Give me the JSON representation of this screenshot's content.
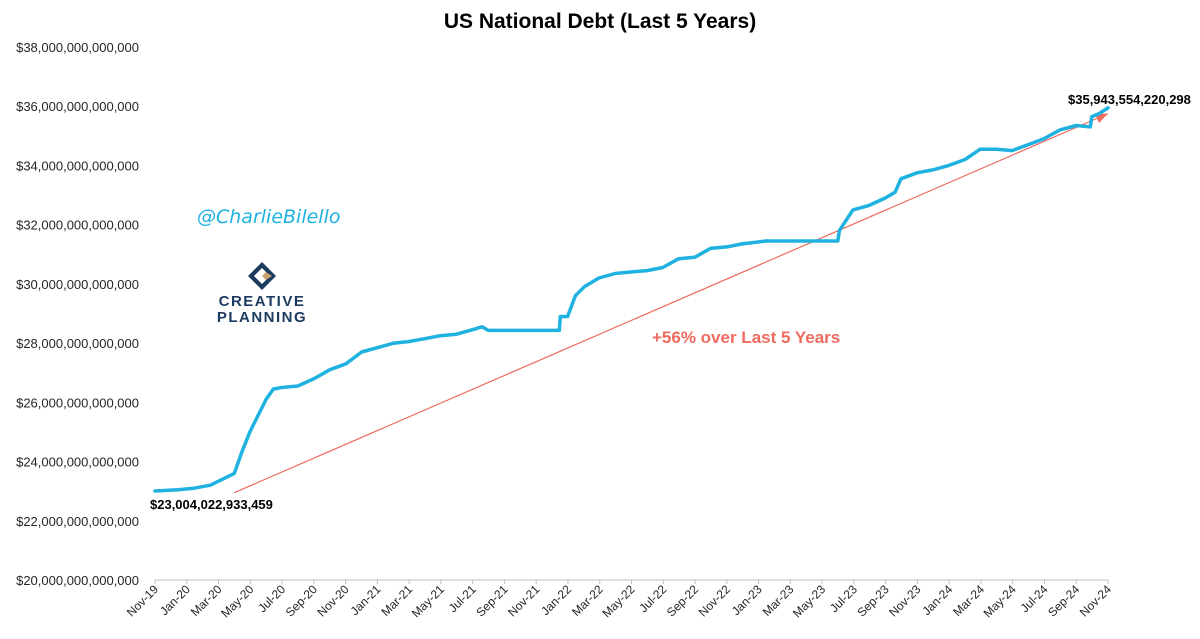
{
  "branding": {
    "handle": "@CharlieBilello",
    "handle_color": "#1fb2e0",
    "logo_line1": "CREATIVE",
    "logo_line2": "PLANNING",
    "logo_icon": "creative-planning-logo-icon"
  },
  "chart_data": {
    "type": "line",
    "title": "US National Debt (Last 5 Years)",
    "xlabel": "",
    "ylabel": "",
    "ylim": [
      20000000000000,
      38000000000000
    ],
    "yticks": [
      20000000000000,
      22000000000000,
      24000000000000,
      26000000000000,
      28000000000000,
      30000000000000,
      32000000000000,
      34000000000000,
      36000000000000,
      38000000000000
    ],
    "ytick_labels": [
      "$20,000,000,000,000",
      "$22,000,000,000,000",
      "$24,000,000,000,000",
      "$26,000,000,000,000",
      "$28,000,000,000,000",
      "$30,000,000,000,000",
      "$32,000,000,000,000",
      "$34,000,000,000,000",
      "$36,000,000,000,000",
      "$38,000,000,000,000"
    ],
    "xticks": [
      "Nov-19",
      "Jan-20",
      "Mar-20",
      "May-20",
      "Jul-20",
      "Sep-20",
      "Nov-20",
      "Jan-21",
      "Mar-21",
      "May-21",
      "Jul-21",
      "Sep-21",
      "Nov-21",
      "Jan-22",
      "Mar-22",
      "May-22",
      "Jul-22",
      "Sep-22",
      "Nov-22",
      "Jan-23",
      "Mar-23",
      "May-23",
      "Jul-23",
      "Sep-23",
      "Nov-23",
      "Jan-24",
      "Mar-24",
      "May-24",
      "Jul-24",
      "Sep-24",
      "Nov-24"
    ],
    "grid": false,
    "line_color": "#1fb2e0",
    "trend_color": "#ee6b5f",
    "series": [
      {
        "x": [
          "2019-11-01",
          "2019-12-15",
          "2020-01-15",
          "2020-02-15",
          "2020-03-15",
          "2020-04-01",
          "2020-04-15",
          "2020-05-01",
          "2020-05-15",
          "2020-06-01",
          "2020-06-15",
          "2020-07-01",
          "2020-08-01",
          "2020-09-01",
          "2020-10-01",
          "2020-11-01",
          "2020-12-01",
          "2021-01-01",
          "2021-02-01",
          "2021-03-01",
          "2021-04-01",
          "2021-05-01",
          "2021-06-01",
          "2021-07-01",
          "2021-07-20",
          "2021-08-01",
          "2021-09-01",
          "2021-10-01",
          "2021-11-15",
          "2021-12-15",
          "2021-12-17",
          "2021-12-31",
          "2022-01-15",
          "2022-02-01",
          "2022-03-01",
          "2022-04-01",
          "2022-05-01",
          "2022-06-01",
          "2022-07-01",
          "2022-08-01",
          "2022-09-01",
          "2022-10-01",
          "2022-11-01",
          "2022-12-01",
          "2023-01-15",
          "2023-06-02",
          "2023-06-05",
          "2023-07-01",
          "2023-08-01",
          "2023-09-01",
          "2023-09-20",
          "2023-10-01",
          "2023-11-01",
          "2023-12-01",
          "2024-01-01",
          "2024-02-01",
          "2024-03-01",
          "2024-04-01",
          "2024-05-01",
          "2024-06-01",
          "2024-07-01",
          "2024-08-01",
          "2024-09-01",
          "2024-09-28",
          "2024-10-01",
          "2024-10-15",
          "2024-11-01"
        ],
        "values": [
          23004022933459,
          23050000000000,
          23100000000000,
          23200000000000,
          23450000000000,
          23600000000000,
          24300000000000,
          25000000000000,
          25500000000000,
          26100000000000,
          26450000000000,
          26500000000000,
          26550000000000,
          26800000000000,
          27100000000000,
          27300000000000,
          27700000000000,
          27850000000000,
          28000000000000,
          28050000000000,
          28150000000000,
          28250000000000,
          28300000000000,
          28450000000000,
          28550000000000,
          28430000000000,
          28430000000000,
          28430000000000,
          28430000000000,
          28430000000000,
          28900000000000,
          28900000000000,
          29600000000000,
          29900000000000,
          30200000000000,
          30350000000000,
          30400000000000,
          30450000000000,
          30550000000000,
          30850000000000,
          30900000000000,
          31200000000000,
          31250000000000,
          31350000000000,
          31450000000000,
          31450000000000,
          31800000000000,
          32500000000000,
          32650000000000,
          32900000000000,
          33100000000000,
          33550000000000,
          33750000000000,
          33850000000000,
          34000000000000,
          34200000000000,
          34550000000000,
          34550000000000,
          34500000000000,
          34700000000000,
          34900000000000,
          35200000000000,
          35350000000000,
          35300000000000,
          35650000000000,
          35750000000000,
          35943554220298
        ]
      }
    ],
    "trend": {
      "from": {
        "x": "2020-04-01",
        "y": 22950000000000
      },
      "to": {
        "x": "2024-11-01",
        "y": 35750000000000
      }
    },
    "start_label": "$23,004,022,933,459",
    "end_label": "$35,943,554,220,298",
    "annotation": "+56% over Last 5 Years"
  }
}
